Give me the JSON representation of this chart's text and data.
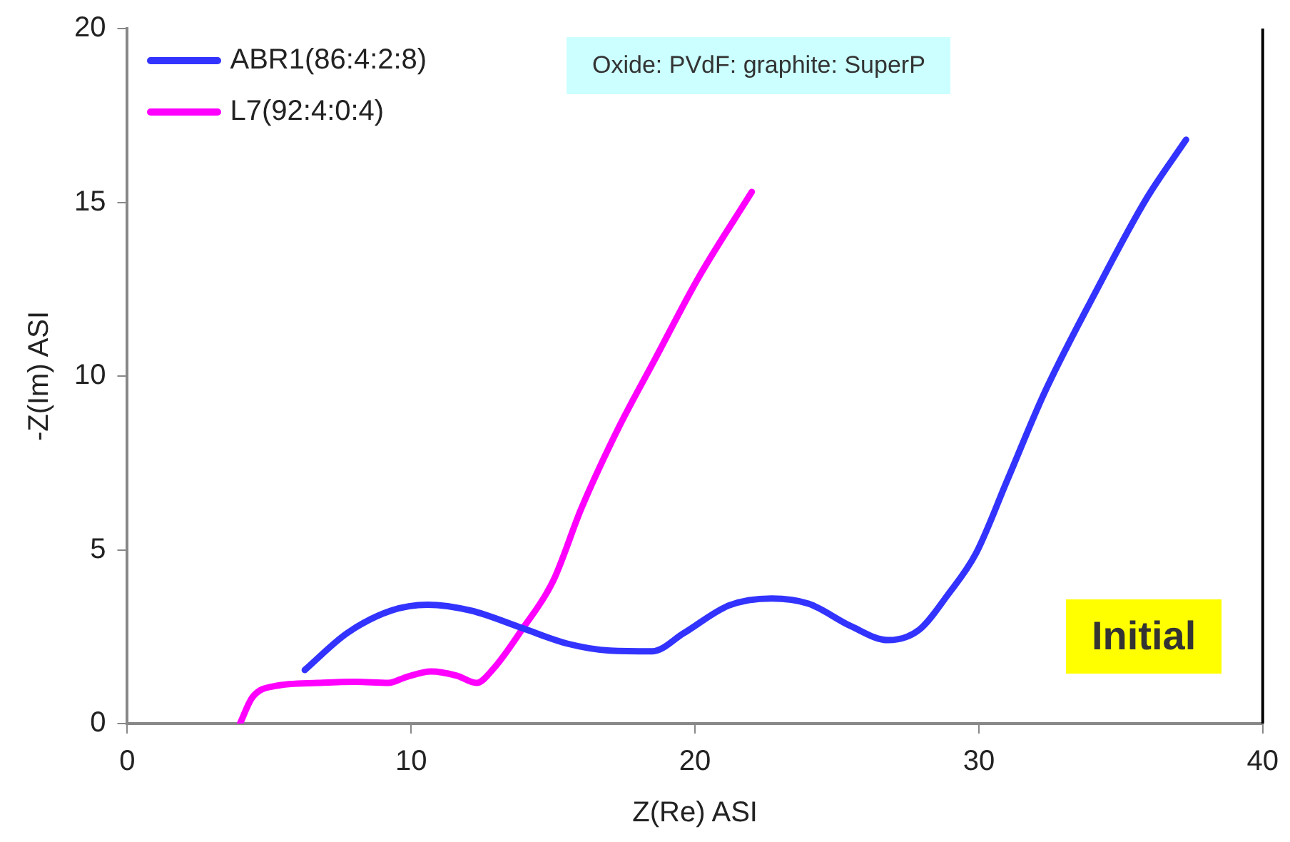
{
  "chart_data": {
    "type": "line",
    "xlabel": "Z(Re) ASI",
    "ylabel": "-Z(Im) ASI",
    "xlim": [
      0,
      40
    ],
    "xticks": [
      0,
      10,
      20,
      30,
      40
    ],
    "ylim": [
      0,
      20
    ],
    "yticks": [
      0,
      5,
      10,
      15,
      20
    ],
    "grid": false,
    "legend": "top left",
    "marker": "none",
    "line_style": "solid",
    "annotations": [
      "Oxide: PVdF: graphite: SuperP",
      "Initial"
    ],
    "series": [
      {
        "name": "ABR1(86:4:2:8)",
        "color": "#3333ff",
        "x": [
          6.25,
          7.74,
          9.29,
          10.58,
          12.1,
          13.9,
          15.5,
          17.0,
          18.5,
          19.6,
          21.2,
          22.7,
          24.0,
          25.5,
          26.8,
          27.9,
          28.9,
          29.9,
          31.0,
          32.3,
          34.1,
          35.9,
          37.3
        ],
        "values": [
          1.54,
          2.6,
          3.25,
          3.42,
          3.25,
          2.75,
          2.3,
          2.1,
          2.08,
          2.6,
          3.4,
          3.6,
          3.45,
          2.8,
          2.4,
          2.7,
          3.7,
          4.9,
          7.0,
          9.5,
          12.4,
          15.1,
          16.8
        ]
      },
      {
        "name": "L7(92:4:0:4)",
        "color": "#ff00ff",
        "x": [
          3.97,
          4.4,
          5.2,
          6.7,
          8.0,
          9.2,
          9.8,
          10.7,
          11.6,
          12.3,
          12.9,
          13.9,
          15.0,
          16.0,
          17.3,
          18.6,
          20.1,
          22.0
        ],
        "values": [
          0,
          0.75,
          1.08,
          1.17,
          1.2,
          1.17,
          1.33,
          1.5,
          1.38,
          1.17,
          1.58,
          2.7,
          4.1,
          6.2,
          8.5,
          10.5,
          12.8,
          15.3
        ]
      }
    ]
  }
}
